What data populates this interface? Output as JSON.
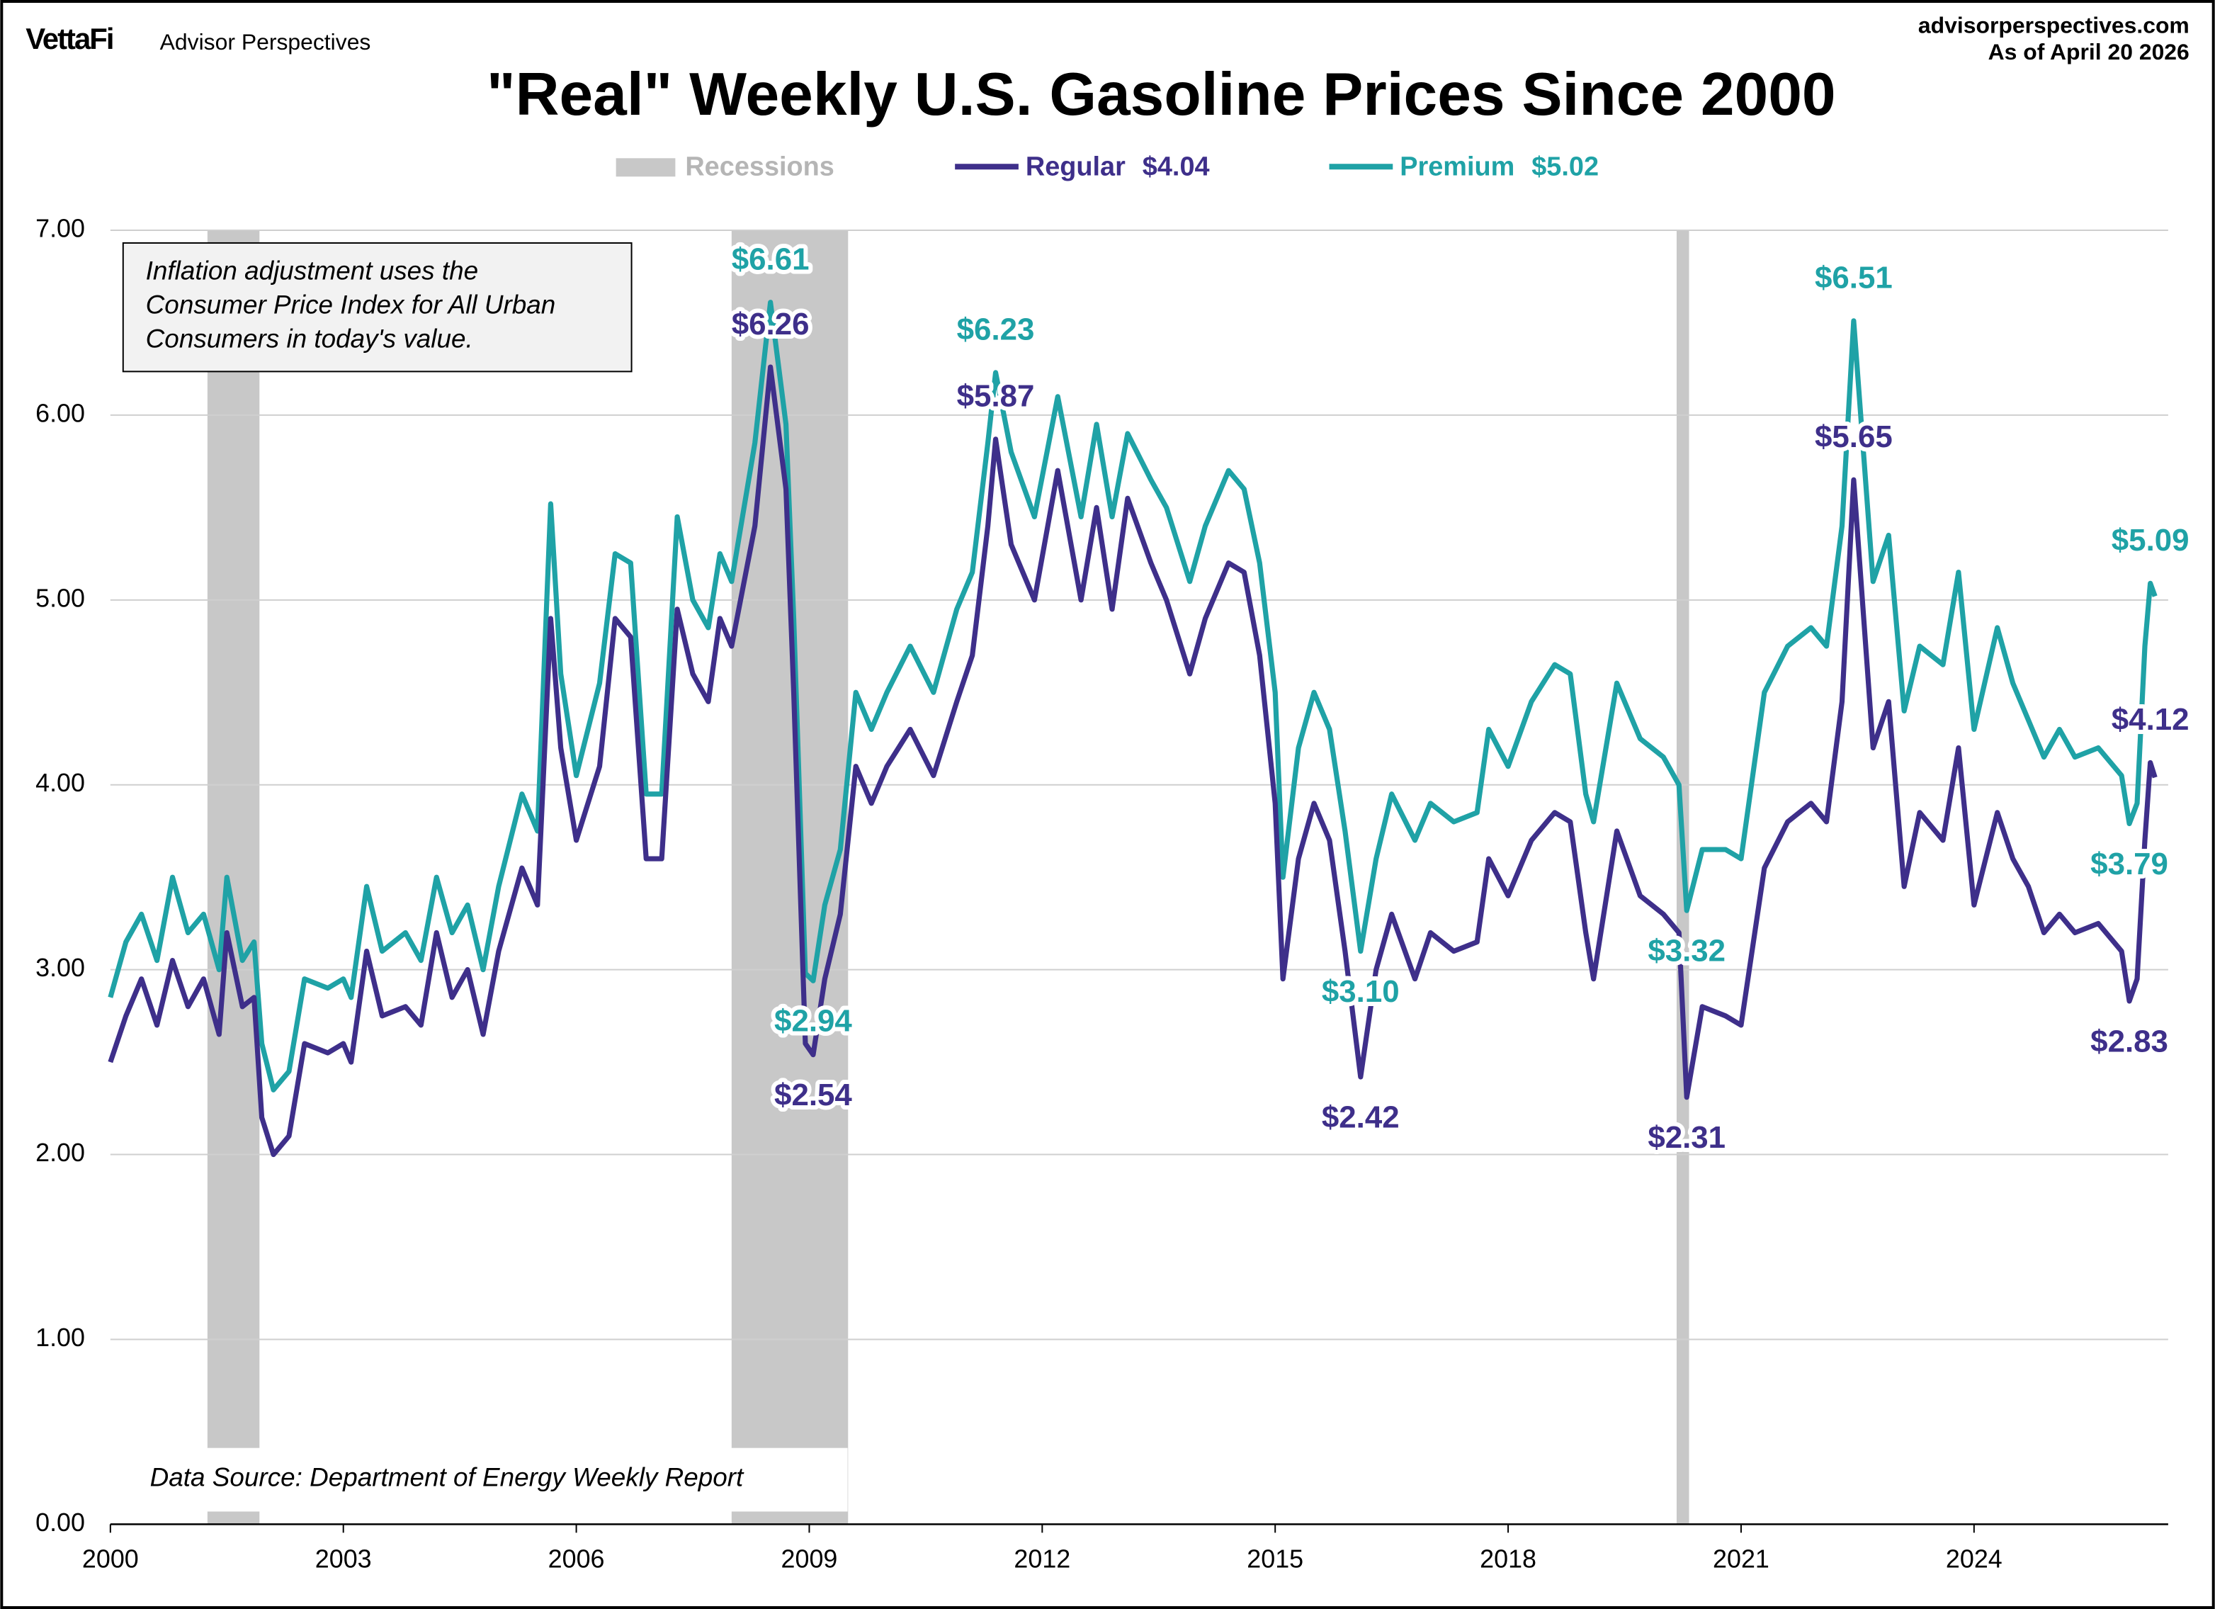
{
  "header": {
    "brand": "VettaFi",
    "publisher": "Advisor Perspectives",
    "website": "advisorperspectives.com",
    "date_note": "As of April 20 2026"
  },
  "chart_data": {
    "type": "line",
    "title": "\"Real\" Weekly U.S. Gasoline Prices Since 2000",
    "note": [
      "Inflation adjustment uses the",
      "Consumer Price Index for All Urban",
      "Consumers in today's value."
    ],
    "source": "Data Source: Department of Energy Weekly Report",
    "recession_label": "Recessions",
    "recession_color": "#c8c8c8",
    "recessions": [
      [
        2001.25,
        2001.92
      ],
      [
        2008.0,
        2009.5
      ],
      [
        2020.17,
        2020.33
      ]
    ],
    "xlim": [
      2000,
      2026.5
    ],
    "ylim": [
      0,
      7
    ],
    "grid": true,
    "xticks": [
      2000,
      2003,
      2006,
      2009,
      2012,
      2015,
      2018,
      2021,
      2024
    ],
    "yticks": [
      {
        "value": 0,
        "label": "0.00"
      },
      {
        "value": 1,
        "label": "1.00"
      },
      {
        "value": 2,
        "label": "2.00"
      },
      {
        "value": 3,
        "label": "3.00"
      },
      {
        "value": 4,
        "label": "4.00"
      },
      {
        "value": 5,
        "label": "5.00"
      },
      {
        "value": 6,
        "label": "6.00"
      },
      {
        "value": 7,
        "label": "7.00"
      }
    ],
    "x": [
      2000.0,
      2000.2,
      2000.4,
      2000.6,
      2000.8,
      2001.0,
      2001.2,
      2001.4,
      2001.5,
      2001.7,
      2001.85,
      2001.95,
      2002.1,
      2002.3,
      2002.5,
      2002.8,
      2003.0,
      2003.1,
      2003.3,
      2003.5,
      2003.8,
      2004.0,
      2004.2,
      2004.4,
      2004.6,
      2004.8,
      2005.0,
      2005.3,
      2005.5,
      2005.67,
      2005.8,
      2006.0,
      2006.3,
      2006.5,
      2006.7,
      2006.9,
      2007.1,
      2007.3,
      2007.5,
      2007.7,
      2007.85,
      2008.0,
      2008.3,
      2008.5,
      2008.7,
      2008.8,
      2008.95,
      2009.05,
      2009.2,
      2009.4,
      2009.6,
      2009.8,
      2010.0,
      2010.3,
      2010.6,
      2010.9,
      2011.1,
      2011.3,
      2011.4,
      2011.6,
      2011.9,
      2012.2,
      2012.5,
      2012.7,
      2012.9,
      2013.1,
      2013.4,
      2013.6,
      2013.9,
      2014.1,
      2014.4,
      2014.6,
      2014.8,
      2015.0,
      2015.1,
      2015.3,
      2015.5,
      2015.7,
      2015.9,
      2016.1,
      2016.3,
      2016.5,
      2016.8,
      2017.0,
      2017.3,
      2017.6,
      2017.75,
      2018.0,
      2018.3,
      2018.6,
      2018.8,
      2019.0,
      2019.1,
      2019.4,
      2019.7,
      2020.0,
      2020.2,
      2020.3,
      2020.5,
      2020.8,
      2021.0,
      2021.3,
      2021.6,
      2021.9,
      2022.1,
      2022.3,
      2022.45,
      2022.7,
      2022.9,
      2023.1,
      2023.3,
      2023.6,
      2023.8,
      2024.0,
      2024.3,
      2024.5,
      2024.7,
      2024.9,
      2025.1,
      2025.3,
      2025.6,
      2025.9,
      2026.0,
      2026.1,
      2026.2,
      2026.27,
      2026.33
    ],
    "series": [
      {
        "name": "Regular",
        "color": "#3e2f8a",
        "latest": {
          "value": 4.04,
          "label": "$4.04"
        },
        "values": [
          2.5,
          2.75,
          2.95,
          2.7,
          3.05,
          2.8,
          2.95,
          2.65,
          3.2,
          2.8,
          2.85,
          2.2,
          2.0,
          2.1,
          2.6,
          2.55,
          2.6,
          2.5,
          3.1,
          2.75,
          2.8,
          2.7,
          3.2,
          2.85,
          3.0,
          2.65,
          3.1,
          3.55,
          3.35,
          4.9,
          4.2,
          3.7,
          4.1,
          4.9,
          4.8,
          3.6,
          3.6,
          4.95,
          4.6,
          4.45,
          4.9,
          4.75,
          5.4,
          6.26,
          5.6,
          4.5,
          2.6,
          2.54,
          2.95,
          3.3,
          4.1,
          3.9,
          4.1,
          4.3,
          4.05,
          4.45,
          4.7,
          5.4,
          5.87,
          5.3,
          5.0,
          5.7,
          5.0,
          5.5,
          4.95,
          5.55,
          5.2,
          5.0,
          4.6,
          4.9,
          5.2,
          5.15,
          4.7,
          3.9,
          2.95,
          3.6,
          3.9,
          3.7,
          3.1,
          2.42,
          3.0,
          3.3,
          2.95,
          3.2,
          3.1,
          3.15,
          3.6,
          3.4,
          3.7,
          3.85,
          3.8,
          3.2,
          2.95,
          3.75,
          3.4,
          3.3,
          3.2,
          2.31,
          2.8,
          2.75,
          2.7,
          3.55,
          3.8,
          3.9,
          3.8,
          4.45,
          5.65,
          4.2,
          4.45,
          3.45,
          3.85,
          3.7,
          4.2,
          3.35,
          3.85,
          3.6,
          3.45,
          3.2,
          3.3,
          3.2,
          3.25,
          3.1,
          2.83,
          2.95,
          3.7,
          4.12,
          4.04
        ]
      },
      {
        "name": "Premium",
        "color": "#1fa2a6",
        "latest": {
          "value": 5.02,
          "label": "$5.02"
        },
        "values": [
          2.85,
          3.15,
          3.3,
          3.05,
          3.5,
          3.2,
          3.3,
          3.0,
          3.5,
          3.05,
          3.15,
          2.6,
          2.35,
          2.45,
          2.95,
          2.9,
          2.95,
          2.85,
          3.45,
          3.1,
          3.2,
          3.05,
          3.5,
          3.2,
          3.35,
          3.0,
          3.45,
          3.95,
          3.75,
          5.52,
          4.6,
          4.05,
          4.55,
          5.25,
          5.2,
          3.95,
          3.95,
          5.45,
          5.0,
          4.85,
          5.25,
          5.1,
          5.85,
          6.61,
          5.95,
          4.9,
          2.98,
          2.94,
          3.35,
          3.65,
          4.5,
          4.3,
          4.5,
          4.75,
          4.5,
          4.95,
          5.15,
          5.85,
          6.23,
          5.8,
          5.45,
          6.1,
          5.45,
          5.95,
          5.45,
          5.9,
          5.65,
          5.5,
          5.1,
          5.4,
          5.7,
          5.6,
          5.2,
          4.5,
          3.5,
          4.2,
          4.5,
          4.3,
          3.75,
          3.1,
          3.6,
          3.95,
          3.7,
          3.9,
          3.8,
          3.85,
          4.3,
          4.1,
          4.45,
          4.65,
          4.6,
          3.95,
          3.8,
          4.55,
          4.25,
          4.15,
          4.0,
          3.32,
          3.65,
          3.65,
          3.6,
          4.5,
          4.75,
          4.85,
          4.75,
          5.4,
          6.51,
          5.1,
          5.35,
          4.4,
          4.75,
          4.65,
          5.15,
          4.3,
          4.85,
          4.55,
          4.35,
          4.15,
          4.3,
          4.15,
          4.2,
          4.05,
          3.79,
          3.9,
          4.75,
          5.09,
          5.02
        ]
      }
    ],
    "annotations": [
      {
        "series": 1,
        "x": 2008.5,
        "value": 6.61,
        "label": "$6.61",
        "position": "above"
      },
      {
        "series": 0,
        "x": 2008.5,
        "value": 6.26,
        "label": "$6.26",
        "position": "above"
      },
      {
        "series": 1,
        "x": 2009.05,
        "value": 2.94,
        "label": "$2.94",
        "position": "below"
      },
      {
        "series": 0,
        "x": 2009.05,
        "value": 2.54,
        "label": "$2.54",
        "position": "below"
      },
      {
        "series": 1,
        "x": 2011.4,
        "value": 6.23,
        "label": "$6.23",
        "position": "above"
      },
      {
        "series": 0,
        "x": 2011.4,
        "value": 5.87,
        "label": "$5.87",
        "position": "above"
      },
      {
        "series": 1,
        "x": 2016.1,
        "value": 3.1,
        "label": "$3.10",
        "position": "below"
      },
      {
        "series": 0,
        "x": 2016.1,
        "value": 2.42,
        "label": "$2.42",
        "position": "below"
      },
      {
        "series": 1,
        "x": 2020.3,
        "value": 3.32,
        "label": "$3.32",
        "position": "below"
      },
      {
        "series": 0,
        "x": 2020.3,
        "value": 2.31,
        "label": "$2.31",
        "position": "below"
      },
      {
        "series": 1,
        "x": 2022.45,
        "value": 6.51,
        "label": "$6.51",
        "position": "above"
      },
      {
        "series": 0,
        "x": 2022.45,
        "value": 5.65,
        "label": "$5.65",
        "position": "above"
      },
      {
        "series": 1,
        "x": 2026.27,
        "value": 5.09,
        "label": "$5.09",
        "position": "above"
      },
      {
        "series": 0,
        "x": 2026.27,
        "value": 4.12,
        "label": "$4.12",
        "position": "above"
      },
      {
        "series": 1,
        "x": 2026.0,
        "value": 3.79,
        "label": "$3.79",
        "position": "below"
      },
      {
        "series": 0,
        "x": 2026.0,
        "value": 2.83,
        "label": "$2.83",
        "position": "below"
      }
    ]
  }
}
